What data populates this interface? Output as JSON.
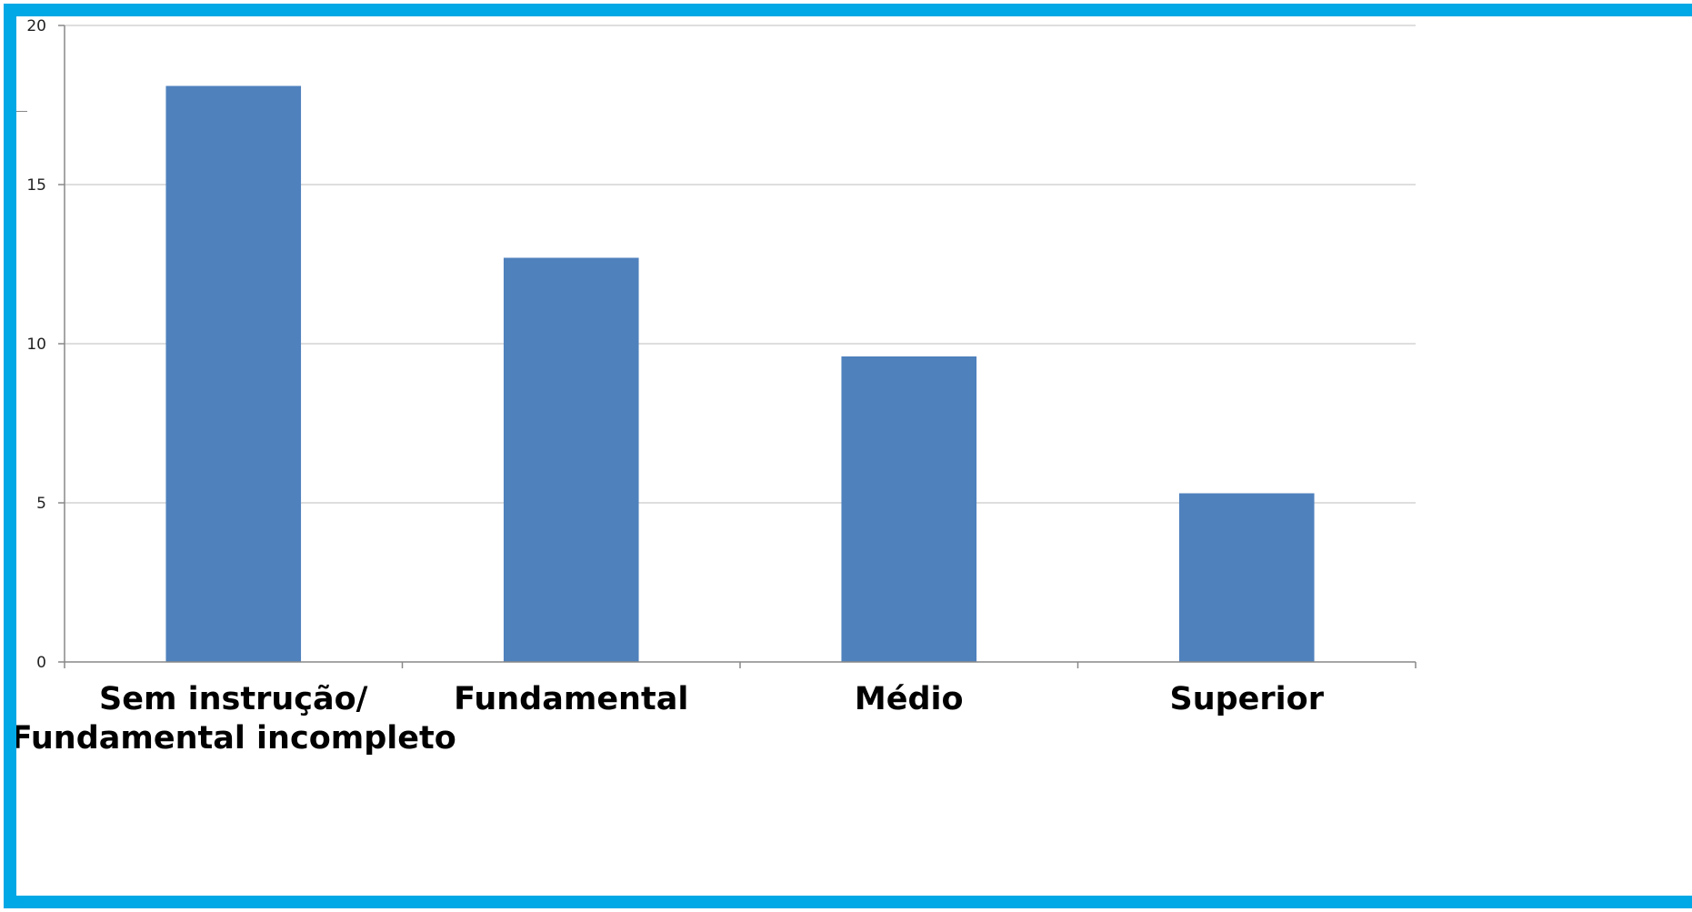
{
  "chart_data": {
    "type": "bar",
    "categories": [
      [
        "Sem instrução/",
        "Fundamental incompleto"
      ],
      [
        "Fundamental"
      ],
      [
        "Médio"
      ],
      [
        "Superior"
      ]
    ],
    "values": [
      18.1,
      12.7,
      9.6,
      5.3
    ],
    "ylim": [
      0,
      20
    ],
    "yticks": [
      0,
      5,
      10,
      15,
      20
    ],
    "title": "",
    "xlabel": "",
    "ylabel": "",
    "grid": true,
    "legend": "none",
    "colors": {
      "bar": "#4f81bd",
      "frame": "#00a8e6",
      "grid": "#d4d4d4",
      "axis": "#888888"
    }
  }
}
